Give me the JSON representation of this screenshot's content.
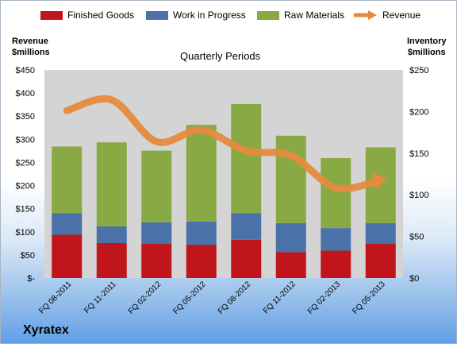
{
  "legend": {
    "finished_goods": "Finished Goods",
    "work_in_progress": "Work in Progress",
    "raw_materials": "Raw Materials",
    "revenue": "Revenue"
  },
  "axes": {
    "left_title_line1": "Revenue",
    "left_title_line2": "$millions",
    "right_title_line1": "Inventory",
    "right_title_line2": "$millions"
  },
  "title": "Quarterly Periods",
  "brand": "Xyratex",
  "colors": {
    "finished_goods": "#c0151b",
    "work_in_progress": "#4a72a8",
    "raw_materials": "#88a943",
    "revenue": "#e68a3e",
    "plot_background": "#d4d4d4"
  },
  "chart_data": {
    "type": "bar",
    "stacked": true,
    "title": "Quarterly Periods",
    "categories": [
      "FQ 08-2011",
      "FQ 11-2011",
      "FQ 02-2012",
      "FQ 05-2012",
      "FQ 08-2012",
      "FQ 11-2012",
      "FQ 02-2013",
      "FQ 05-2013"
    ],
    "series": [
      {
        "name": "Finished Goods",
        "axis": "right",
        "values": [
          52,
          42,
          41,
          40,
          46,
          31,
          33,
          41
        ]
      },
      {
        "name": "Work in Progress",
        "axis": "right",
        "values": [
          26,
          20,
          26,
          28,
          32,
          35,
          27,
          25
        ]
      },
      {
        "name": "Raw Materials",
        "axis": "right",
        "values": [
          80,
          101,
          86,
          116,
          131,
          105,
          84,
          91
        ]
      },
      {
        "name": "Revenue",
        "type": "line",
        "axis": "left",
        "values": [
          362,
          385,
          295,
          320,
          275,
          265,
          195,
          212
        ]
      }
    ],
    "y_left": {
      "label": "Revenue $millions",
      "range": [
        0,
        450
      ],
      "ticks": [
        "$-",
        "$50",
        "$100",
        "$150",
        "$200",
        "$250",
        "$300",
        "$350",
        "$400",
        "$450"
      ]
    },
    "y_right": {
      "label": "Inventory $millions",
      "range": [
        0,
        250
      ],
      "ticks": [
        "$0",
        "$50",
        "$100",
        "$150",
        "$200",
        "$250"
      ]
    },
    "legend_position": "top",
    "grid": false
  }
}
